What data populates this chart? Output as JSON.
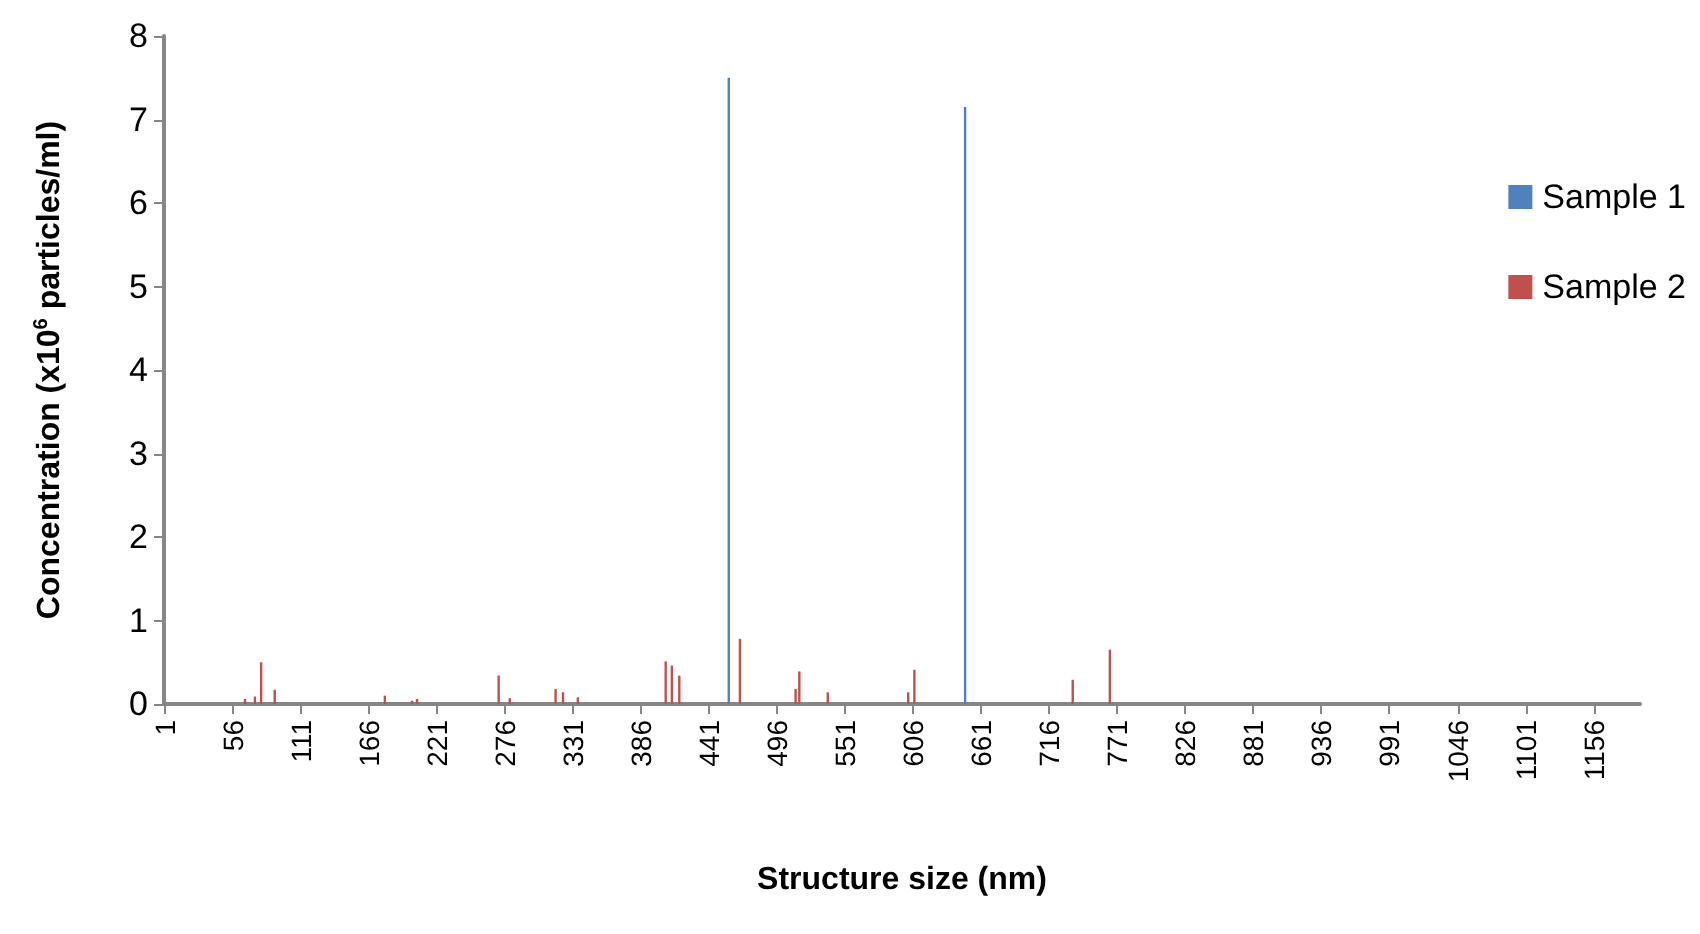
{
  "chart_data": {
    "type": "bar",
    "xlabel": "Structure size (nm)",
    "ylabel": "Concentration (x10$^{6}$ particles/ml)",
    "xlim": [
      0.5,
      1193.5
    ],
    "xticks": [
      1,
      56,
      111,
      166,
      221,
      276,
      331,
      386,
      441,
      496,
      551,
      606,
      661,
      716,
      771,
      826,
      881,
      936,
      991,
      1046,
      1101,
      1156
    ],
    "ylim": [
      0,
      8
    ],
    "yticks": [
      0,
      1,
      2,
      3,
      4,
      5,
      6,
      7,
      8
    ],
    "grid": false,
    "legend": "right",
    "series": [
      {
        "name": "Sample 1",
        "color": "#4f81bd",
        "x": [
          457,
          648
        ],
        "values": [
          7.5,
          7.15
        ]
      },
      {
        "name": "Sample 2",
        "color": "#c0504d",
        "x": [
          66,
          74,
          79,
          90,
          179,
          201,
          205,
          271,
          280,
          317,
          323,
          335,
          406,
          411,
          417,
          466,
          511,
          514,
          537,
          602,
          607,
          735,
          765
        ],
        "values": [
          0.06,
          0.09,
          0.5,
          0.17,
          0.1,
          0.04,
          0.06,
          0.34,
          0.07,
          0.18,
          0.14,
          0.08,
          0.51,
          0.46,
          0.34,
          0.78,
          0.18,
          0.39,
          0.14,
          0.14,
          0.41,
          0.29,
          0.65
        ]
      }
    ]
  }
}
